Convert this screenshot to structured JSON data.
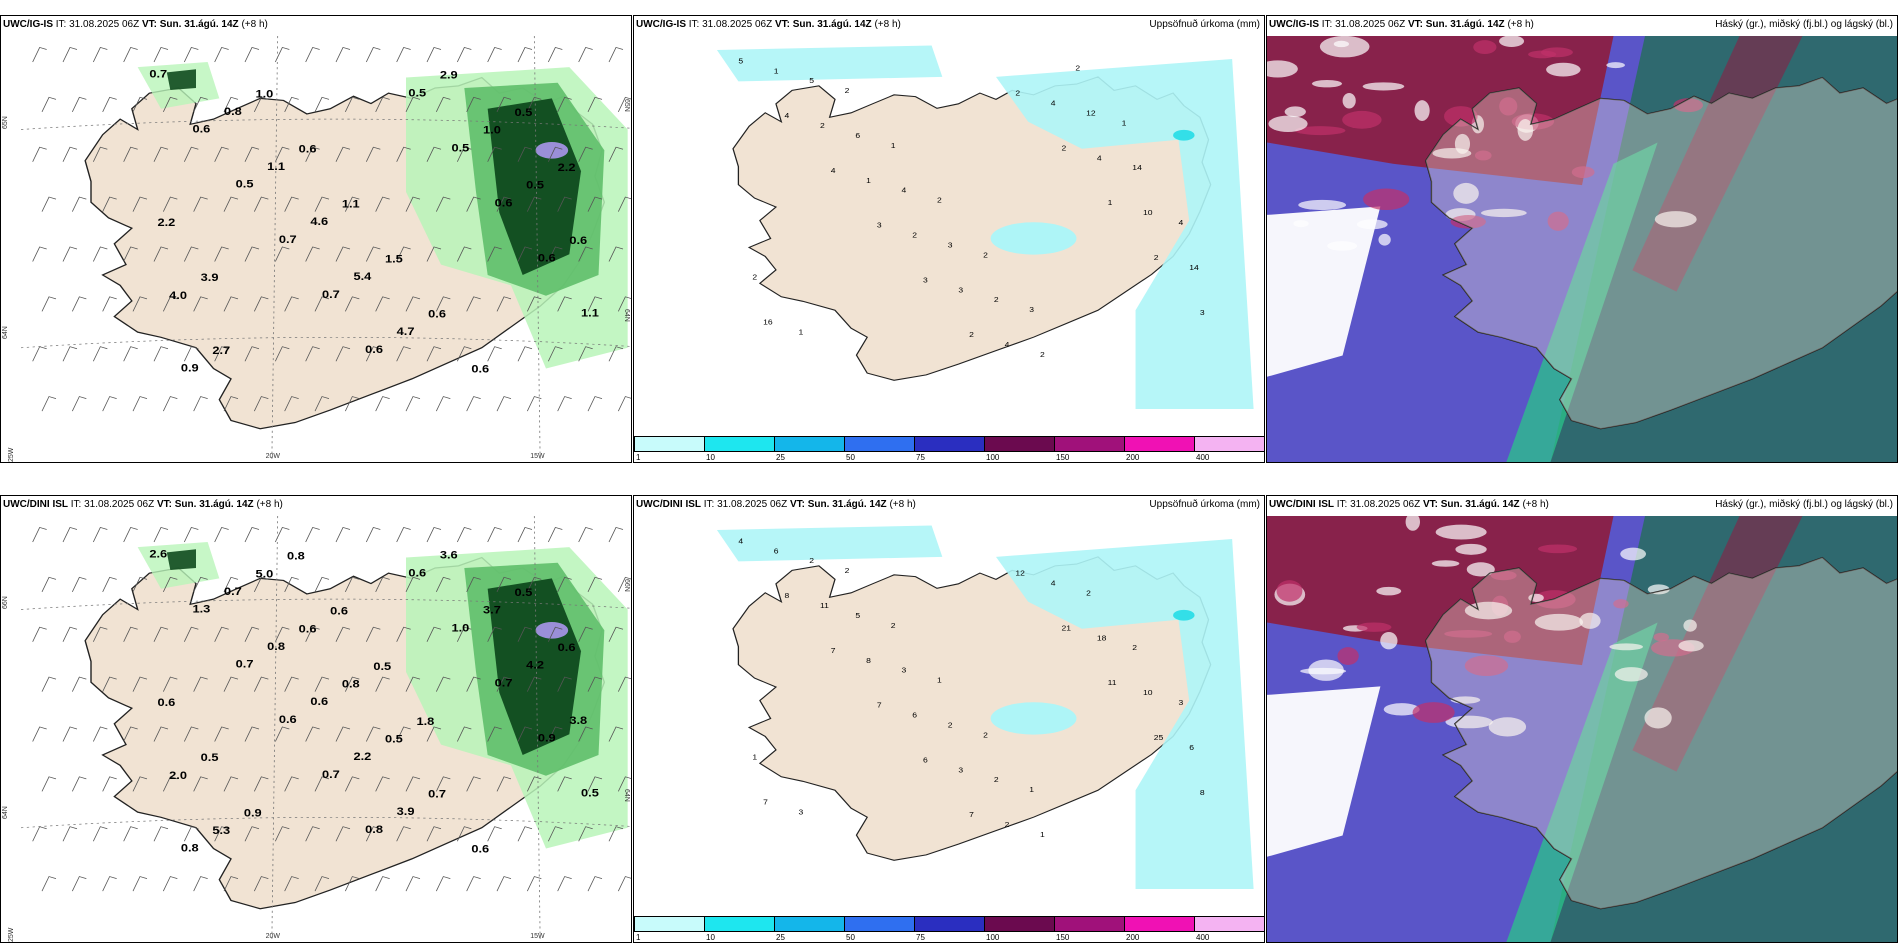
{
  "colors": {
    "land": "#f1e3d3",
    "coast": "#222222",
    "precip_light": "#b9f5b9",
    "precip_mid": "#5fbf6a",
    "precip_dark": "#0f4a1e",
    "precip_peak": "#9a8fd8",
    "accum_light": "#aef5f7",
    "accum_mid": "#33dfe8",
    "cloud_high": "#8b2045",
    "cloud_mid": "#5a55c8",
    "cloud_low": "#2d6a6a",
    "cloud_green": "#2bc48a"
  },
  "colorbar": {
    "labels": [
      "1",
      "10",
      "25",
      "50",
      "75",
      "100",
      "150",
      "200",
      "400"
    ],
    "colors": [
      "#c8fbfb",
      "#1ee6ef",
      "#14b6ea",
      "#2f6ff0",
      "#2a2ec0",
      "#6b0a4f",
      "#a0117a",
      "#f011b4",
      "#f4b3f2"
    ]
  },
  "rows": [
    {
      "panels": [
        {
          "model": "UWC/IG-IS",
          "it_label": "IT:",
          "it": "31.08.2025 06Z",
          "vt_label": "VT:",
          "vt": "Sun. 31.ágú. 14Z",
          "lead": "(+8 h)",
          "right_title": "",
          "kind": "precip",
          "values": [
            "0.7",
            "0.6",
            "0.5",
            "0.7",
            "0.7",
            "0.6",
            "0.5",
            "0.5",
            "0.6",
            "0.6",
            "1.1",
            "0.9",
            "0.8",
            "1.1",
            "4.6",
            "5.4",
            "4.7",
            "2.9",
            "1.0",
            "0.5",
            "0.6",
            "4.0",
            "2.7",
            "1.0",
            "0.6",
            "1.1",
            "1.5",
            "0.6",
            "0.6",
            "0.5",
            "2.2",
            "2.2",
            "3.9"
          ],
          "lat_labels": [
            "65N",
            "64N"
          ],
          "lon_labels": [
            "25W",
            "20W",
            "15W"
          ],
          "right_lat": [
            "65N",
            "64N"
          ]
        },
        {
          "model": "UWC/IG-IS",
          "it_label": "IT:",
          "it": "31.08.2025 06Z",
          "vt_label": "VT:",
          "vt": "Sun. 31.ágú. 14Z",
          "lead": "(+8 h)",
          "right_title": "Uppsöfnuð úrkoma (mm)",
          "kind": "accum",
          "values": [
            "5",
            "4",
            "4",
            "3",
            "3",
            "2",
            "2",
            "2",
            "1",
            "2",
            "3",
            "1",
            "2",
            "1",
            "2",
            "3",
            "4",
            "4",
            "4",
            "10",
            "14",
            "16",
            "5",
            "6",
            "4",
            "3",
            "2",
            "2",
            "12",
            "14",
            "4",
            "2",
            "1",
            "2",
            "1",
            "2",
            "2",
            "3",
            "2",
            "1"
          ]
        },
        {
          "model": "UWC/IG-IS",
          "it_label": "IT:",
          "it": "31.08.2025 06Z",
          "vt_label": "VT:",
          "vt": "Sun. 31.ágú. 14Z",
          "lead": "(+8 h)",
          "right_title": "Háský (gr.), miðský (fj.bl.) og lágský (bl.)",
          "kind": "cloud"
        }
      ]
    },
    {
      "panels": [
        {
          "model": "UWC/DINI ISL",
          "it_label": "IT:",
          "it": "31.08.2025 06Z",
          "vt_label": "VT:",
          "vt": "Sun. 31.ágú. 14Z",
          "lead": "(+8 h)",
          "right_title": "",
          "kind": "precip",
          "values": [
            "2.6",
            "1.3",
            "0.7",
            "0.6",
            "0.7",
            "0.8",
            "0.6",
            "1.0",
            "0.7",
            "0.9",
            "0.5",
            "0.8",
            "0.7",
            "0.8",
            "0.6",
            "2.2",
            "3.9",
            "3.6",
            "3.7",
            "4.2",
            "3.8",
            "2.0",
            "5.3",
            "5.0",
            "0.6",
            "0.8",
            "0.5",
            "0.7",
            "0.6",
            "0.5",
            "0.6",
            "0.6",
            "0.5",
            "0.9",
            "0.8",
            "0.6",
            "0.5",
            "1.8"
          ],
          "lat_labels": [
            "66N",
            "64N"
          ],
          "lon_labels": [
            "25W",
            "20W",
            "15W"
          ],
          "right_lat": [
            "66N",
            "64N"
          ]
        },
        {
          "model": "UWC/DINI ISL",
          "it_label": "IT:",
          "it": "31.08.2025 06Z",
          "vt_label": "VT:",
          "vt": "Sun. 31.ágú. 14Z",
          "lead": "(+8 h)",
          "right_title": "Uppsöfnuð úrkoma (mm)",
          "kind": "accum",
          "values": [
            "4",
            "8",
            "7",
            "7",
            "6",
            "7",
            "12",
            "21",
            "11",
            "25",
            "8",
            "6",
            "11",
            "8",
            "6",
            "3",
            "2",
            "4",
            "18",
            "10",
            "6",
            "7",
            "2",
            "5",
            "3",
            "2",
            "2",
            "1",
            "2",
            "2",
            "3",
            "1",
            "3",
            "2",
            "2",
            "1",
            "2",
            "1"
          ]
        },
        {
          "model": "UWC/DINI ISL",
          "it_label": "IT:",
          "it": "31.08.2025 06Z",
          "vt_label": "VT:",
          "vt": "Sun. 31.ágú. 14Z",
          "lead": "(+8 h)",
          "right_title": "Háský (gr.), miðský (fj.bl.) og lágský (bl.)",
          "kind": "cloud"
        }
      ]
    }
  ]
}
